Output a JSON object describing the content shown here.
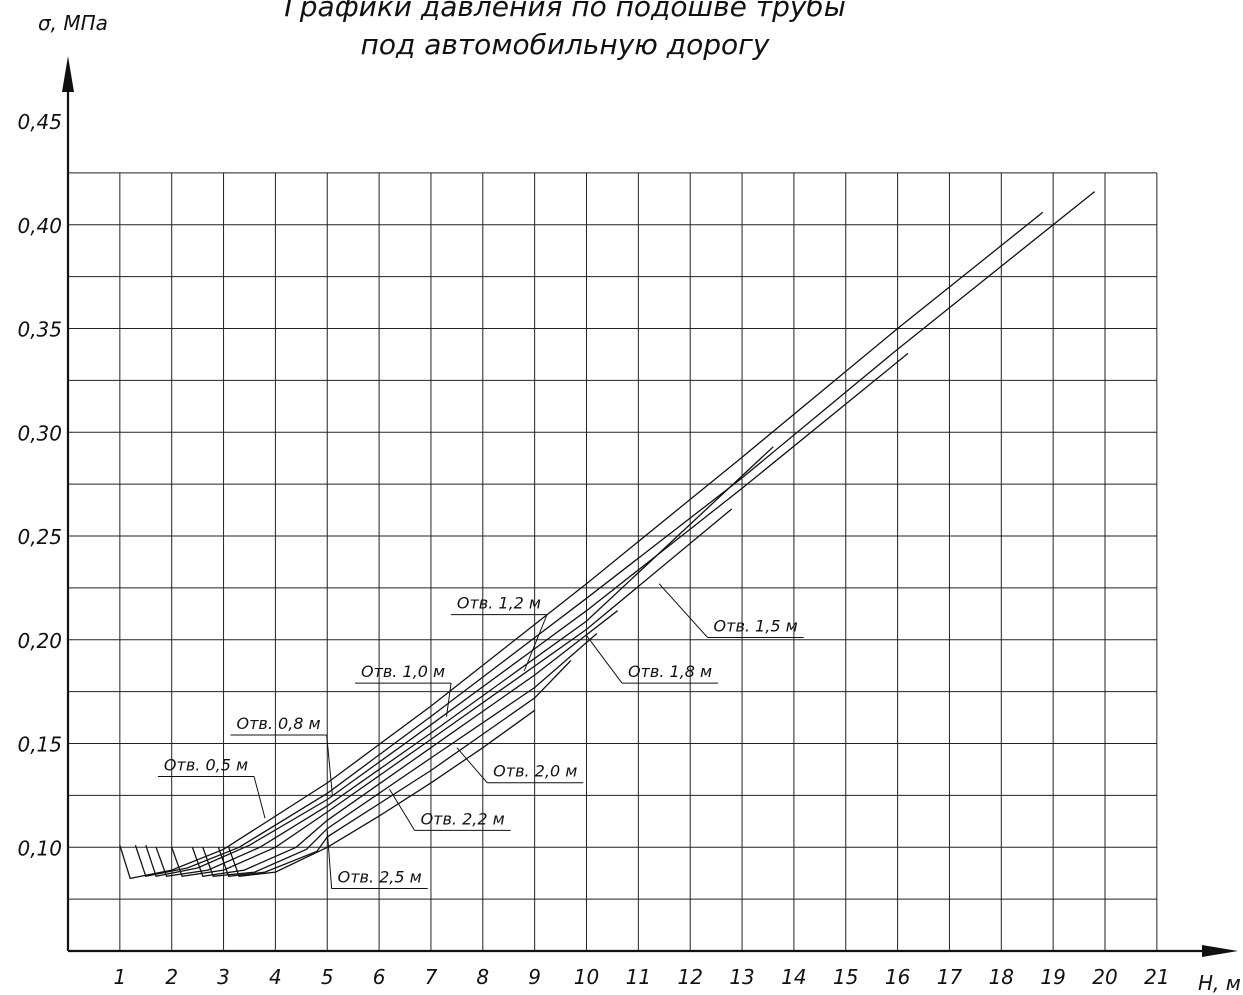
{
  "chart_data": {
    "type": "line",
    "title_lines": [
      "Графики давления по подошве трубы",
      "под автомобильную дорогу"
    ],
    "xlabel": "Н, м",
    "ylabel": "σ, МПа",
    "xlim": [
      0,
      21
    ],
    "ylim": [
      0.05,
      0.45
    ],
    "x_ticks": [
      "1",
      "2",
      "3",
      "4",
      "5",
      "6",
      "7",
      "8",
      "9",
      "10",
      "11",
      "12",
      "13",
      "14",
      "15",
      "16",
      "17",
      "18",
      "19",
      "20",
      "21"
    ],
    "y_ticks": [
      {
        "v": 0.1,
        "label": "0,10"
      },
      {
        "v": 0.15,
        "label": "0,15"
      },
      {
        "v": 0.2,
        "label": "0,20"
      },
      {
        "v": 0.25,
        "label": "0,25"
      },
      {
        "v": 0.3,
        "label": "0,30"
      },
      {
        "v": 0.35,
        "label": "0,35"
      },
      {
        "v": 0.4,
        "label": "0,40"
      },
      {
        "v": 0.45,
        "label": "0,45"
      }
    ],
    "series": [
      {
        "name": "Отв. 0,5 м",
        "points": [
          [
            1.0,
            0.101
          ],
          [
            1.2,
            0.085
          ],
          [
            2.0,
            0.089
          ],
          [
            3.0,
            0.099
          ],
          [
            5.0,
            0.131
          ],
          [
            7.0,
            0.168
          ],
          [
            10.0,
            0.227
          ],
          [
            13.0,
            0.288
          ],
          [
            16.0,
            0.35
          ],
          [
            18.8,
            0.406
          ]
        ]
      },
      {
        "name": "Отв. 0,8 м",
        "points": [
          [
            1.3,
            0.101
          ],
          [
            1.5,
            0.086
          ],
          [
            2.3,
            0.09
          ],
          [
            3.3,
            0.1
          ],
          [
            5.0,
            0.126
          ],
          [
            7.0,
            0.163
          ],
          [
            10.0,
            0.22
          ],
          [
            13.0,
            0.278
          ],
          [
            16.0,
            0.34
          ],
          [
            19.8,
            0.416
          ]
        ]
      },
      {
        "name": "Отв. 1,0 м",
        "points": [
          [
            1.5,
            0.101
          ],
          [
            1.7,
            0.086
          ],
          [
            2.5,
            0.09
          ],
          [
            3.5,
            0.101
          ],
          [
            5.0,
            0.123
          ],
          [
            7.0,
            0.159
          ],
          [
            10.0,
            0.214
          ],
          [
            13.0,
            0.273
          ],
          [
            16.2,
            0.338
          ]
        ]
      },
      {
        "name": "Отв. 1,2 м",
        "points": [
          [
            1.7,
            0.1
          ],
          [
            1.9,
            0.086
          ],
          [
            2.7,
            0.089
          ],
          [
            3.7,
            0.1
          ],
          [
            5.0,
            0.12
          ],
          [
            7.0,
            0.155
          ],
          [
            10.0,
            0.209
          ],
          [
            13.6,
            0.293
          ]
        ]
      },
      {
        "name": "Отв. 1,5 м",
        "points": [
          [
            2.0,
            0.1
          ],
          [
            2.2,
            0.086
          ],
          [
            3.0,
            0.089
          ],
          [
            4.0,
            0.1
          ],
          [
            5.0,
            0.117
          ],
          [
            7.0,
            0.152
          ],
          [
            10.0,
            0.205
          ],
          [
            12.8,
            0.263
          ]
        ]
      },
      {
        "name": "Отв. 1,8 м",
        "points": [
          [
            2.4,
            0.1
          ],
          [
            2.6,
            0.086
          ],
          [
            3.4,
            0.089
          ],
          [
            4.4,
            0.1
          ],
          [
            5.0,
            0.113
          ],
          [
            7.0,
            0.148
          ],
          [
            9.0,
            0.183
          ],
          [
            10.6,
            0.214
          ]
        ]
      },
      {
        "name": "Отв. 2,0 м",
        "points": [
          [
            2.6,
            0.1
          ],
          [
            2.8,
            0.086
          ],
          [
            3.6,
            0.088
          ],
          [
            4.6,
            0.099
          ],
          [
            5.0,
            0.109
          ],
          [
            7.0,
            0.143
          ],
          [
            9.0,
            0.177
          ],
          [
            10.2,
            0.203
          ]
        ]
      },
      {
        "name": "Отв. 2,2 м",
        "points": [
          [
            2.9,
            0.1
          ],
          [
            3.1,
            0.086
          ],
          [
            3.8,
            0.088
          ],
          [
            4.8,
            0.098
          ],
          [
            5.0,
            0.105
          ],
          [
            7.0,
            0.137
          ],
          [
            9.0,
            0.172
          ],
          [
            9.7,
            0.19
          ]
        ]
      },
      {
        "name": "Отв. 2,5 м",
        "points": [
          [
            3.1,
            0.1
          ],
          [
            3.3,
            0.086
          ],
          [
            4.0,
            0.088
          ],
          [
            5.0,
            0.1
          ],
          [
            6.0,
            0.115
          ],
          [
            7.0,
            0.131
          ],
          [
            8.0,
            0.148
          ],
          [
            9.0,
            0.166
          ]
        ]
      }
    ],
    "labels": [
      {
        "text": "Отв. 0,5 м",
        "at": [
          1.85,
          0.137
        ],
        "target": [
          3.8,
          0.114
        ]
      },
      {
        "text": "Отв. 0,8 м",
        "at": [
          3.25,
          0.157
        ],
        "target": [
          5.1,
          0.125
        ]
      },
      {
        "text": "Отв. 1,0 м",
        "at": [
          5.65,
          0.182
        ],
        "target": [
          7.3,
          0.163
        ]
      },
      {
        "text": "Отв. 1,2 м",
        "at": [
          7.5,
          0.215
        ],
        "target": [
          8.8,
          0.185
        ]
      },
      {
        "text": "Отв. 1,5 м",
        "at": [
          12.45,
          0.204
        ],
        "target": [
          11.4,
          0.227
        ]
      },
      {
        "text": "Отв. 1,8 м",
        "at": [
          10.8,
          0.182
        ],
        "target": [
          10.0,
          0.202
        ]
      },
      {
        "text": "Отв. 2,0 м",
        "at": [
          8.2,
          0.134
        ],
        "target": [
          7.5,
          0.148
        ]
      },
      {
        "text": "Отв. 2,2 м",
        "at": [
          6.8,
          0.111
        ],
        "target": [
          6.2,
          0.128
        ]
      },
      {
        "text": "Отв. 2,5 м",
        "at": [
          5.2,
          0.083
        ],
        "target": [
          5.0,
          0.108
        ]
      }
    ]
  }
}
